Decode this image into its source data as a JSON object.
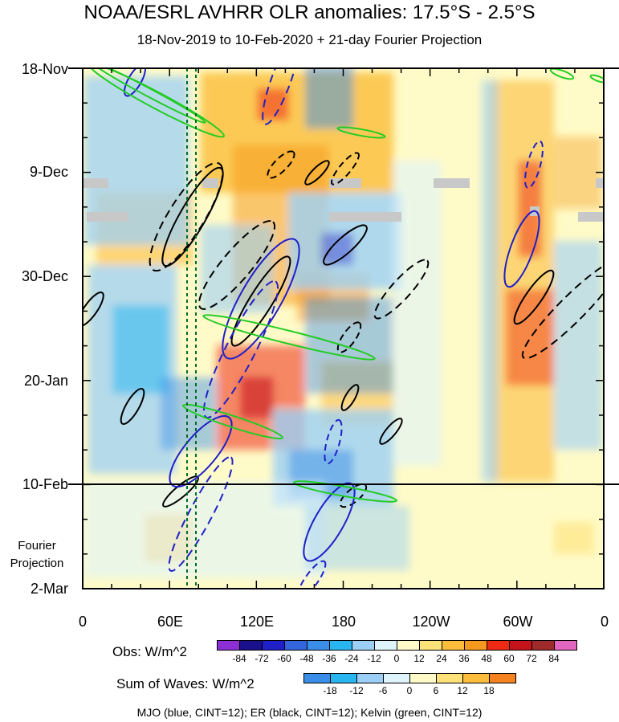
{
  "chart_data": {
    "type": "heatmap",
    "title": "NOAA/ESRL AVHRR OLR anomalies: 17.5°S - 2.5°S",
    "subtitle": "18-Nov-2019 to 10-Feb-2020 + 21-day Fourier Projection",
    "x_ticks": [
      "0",
      "60E",
      "120E",
      "180",
      "120W",
      "60W",
      "0"
    ],
    "x_tick_lon": [
      0,
      60,
      120,
      180,
      240,
      300,
      360
    ],
    "y_ticks": [
      "18-Nov",
      "9-Dec",
      "30-Dec",
      "20-Jan",
      "10-Feb",
      "2-Mar"
    ],
    "y_tick_day": [
      0,
      21,
      42,
      63,
      84,
      105
    ],
    "projection_label": "Fourier Projection",
    "projection_start_day": 84,
    "reference_lon": [
      72,
      78
    ],
    "obs_colorbar": {
      "title": "Obs: W/m^2",
      "levels": [
        "-84",
        "-72",
        "-60",
        "-48",
        "-36",
        "-24",
        "-12",
        "0",
        "12",
        "24",
        "36",
        "48",
        "60",
        "72",
        "84"
      ],
      "colors": [
        "#8c2fd6",
        "#1a0f8c",
        "#1f1fc8",
        "#3366dd",
        "#3a8ee8",
        "#29b6f0",
        "#9ccff5",
        "#dff3fb",
        "#fffbc8",
        "#fde27a",
        "#fbbd3a",
        "#f59a1e",
        "#ee2a15",
        "#c4131a",
        "#9e2a2a",
        "#e266bf"
      ]
    },
    "waves_colorbar": {
      "title": "Sum of Waves: W/m^2",
      "levels": [
        "-18",
        "-12",
        "-6",
        "0",
        "6",
        "12",
        "18"
      ],
      "colors": [
        "#3a8ee8",
        "#29b6f0",
        "#9ccff5",
        "#dff3fb",
        "#fffbc8",
        "#fde27a",
        "#fbbd3a",
        "#f4821e"
      ]
    },
    "legend_note": "MJO (blue, CINT=12); ER (black, CINT=12); Kelvin (green, CINT=12)"
  }
}
